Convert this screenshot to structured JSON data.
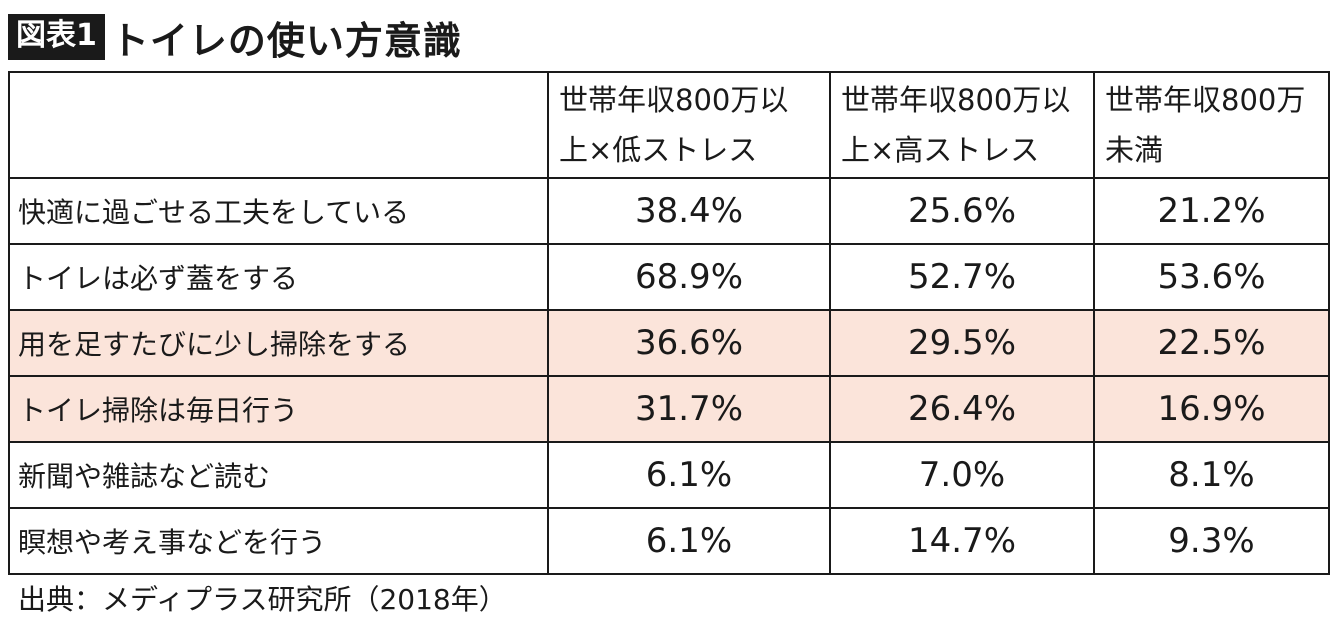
{
  "figure": {
    "badge": "図表1",
    "title": "トイレの使い方意識"
  },
  "chart_data": {
    "type": "table",
    "columns": [
      {
        "line1": "世帯年収800万以",
        "line2": "上×低ストレス"
      },
      {
        "line1": "世帯年収800万以",
        "line2": "上×高ストレス"
      },
      {
        "line1": "世帯年収800万",
        "line2": "未満"
      }
    ],
    "rows": [
      {
        "label": "快適に過ごせる工夫をしている",
        "values": [
          "38.4%",
          "25.6%",
          "21.2%"
        ],
        "highlight": false
      },
      {
        "label": "トイレは必ず蓋をする",
        "values": [
          "68.9%",
          "52.7%",
          "53.6%"
        ],
        "highlight": false
      },
      {
        "label": "用を足すたびに少し掃除をする",
        "values": [
          "36.6%",
          "29.5%",
          "22.5%"
        ],
        "highlight": true
      },
      {
        "label": "トイレ掃除は毎日行う",
        "values": [
          "31.7%",
          "26.4%",
          "16.9%"
        ],
        "highlight": true
      },
      {
        "label": "新聞や雑誌など読む",
        "values": [
          "6.1%",
          "7.0%",
          "8.1%"
        ],
        "highlight": false
      },
      {
        "label": "瞑想や考え事などを行う",
        "values": [
          "6.1%",
          "14.7%",
          "9.3%"
        ],
        "highlight": false
      }
    ],
    "highlight_color": "#fbe4da"
  },
  "source": "出典：メディプラス研究所（2018年）"
}
